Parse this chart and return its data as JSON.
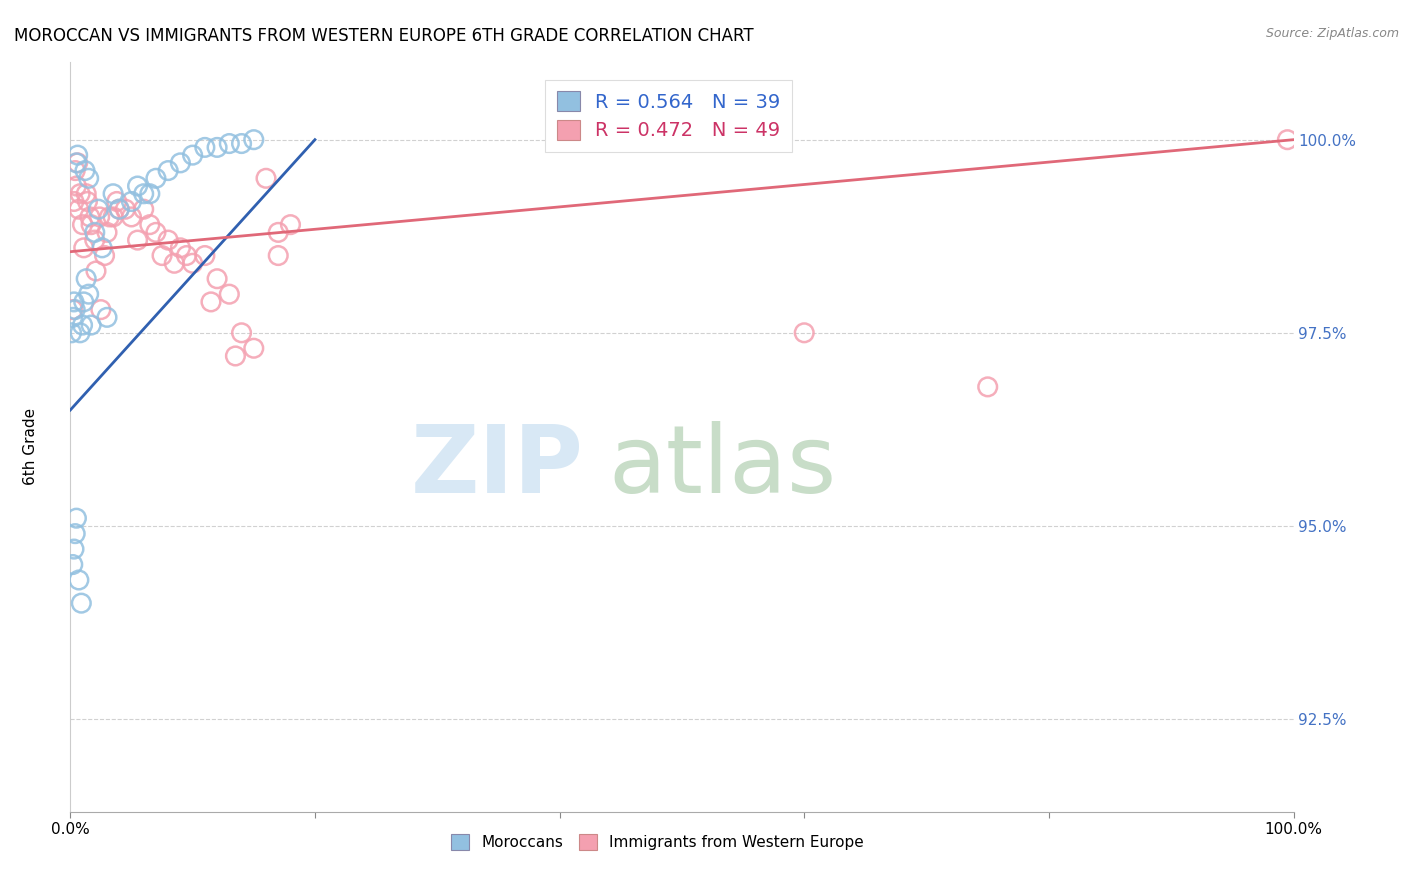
{
  "title": "MOROCCAN VS IMMIGRANTS FROM WESTERN EUROPE 6TH GRADE CORRELATION CHART",
  "source": "Source: ZipAtlas.com",
  "ylabel": "6th Grade",
  "blue_R": 0.564,
  "blue_N": 39,
  "pink_R": 0.472,
  "pink_N": 49,
  "blue_color": "#92c0e0",
  "pink_color": "#f4a0b0",
  "blue_line_color": "#3060b0",
  "pink_line_color": "#e06878",
  "blue_line_x0": 0.0,
  "blue_line_y0": 96.5,
  "blue_line_x1": 20.0,
  "blue_line_y1": 100.0,
  "pink_line_x0": 0.0,
  "pink_line_y0": 98.55,
  "pink_line_x1": 100.0,
  "pink_line_y1": 100.0,
  "xlim": [
    0,
    100
  ],
  "ylim": [
    91.3,
    101.0
  ],
  "yticks": [
    92.5,
    95.0,
    97.5,
    100.0
  ],
  "blue_x": [
    0.2,
    0.3,
    0.4,
    0.5,
    0.7,
    0.9,
    1.1,
    1.3,
    1.5,
    1.7,
    2.0,
    2.3,
    2.6,
    3.0,
    3.5,
    4.0,
    5.0,
    5.5,
    6.0,
    6.5,
    7.0,
    8.0,
    9.0,
    10.0,
    11.0,
    12.0,
    13.0,
    14.0,
    15.0,
    0.1,
    0.2,
    0.3,
    0.4,
    0.5,
    0.6,
    0.8,
    1.0,
    1.2,
    1.5
  ],
  "blue_y": [
    94.5,
    94.7,
    94.9,
    95.1,
    94.3,
    94.0,
    97.9,
    98.2,
    98.0,
    97.6,
    98.8,
    99.1,
    98.6,
    97.7,
    99.3,
    99.1,
    99.2,
    99.4,
    99.3,
    99.3,
    99.5,
    99.6,
    99.7,
    99.8,
    99.9,
    99.9,
    99.95,
    99.95,
    100.0,
    97.5,
    97.7,
    97.9,
    97.8,
    99.7,
    99.8,
    97.5,
    97.6,
    99.6,
    99.5
  ],
  "pink_x": [
    0.3,
    0.5,
    0.7,
    1.0,
    1.3,
    1.6,
    2.0,
    2.4,
    2.8,
    3.2,
    3.8,
    4.5,
    5.0,
    6.0,
    7.0,
    8.0,
    9.0,
    10.0,
    11.0,
    12.0,
    13.0,
    14.0,
    15.0,
    16.0,
    17.0,
    0.2,
    0.4,
    0.6,
    0.8,
    1.1,
    1.4,
    1.7,
    2.1,
    2.5,
    3.0,
    3.5,
    4.0,
    5.5,
    6.5,
    7.5,
    8.5,
    9.5,
    11.5,
    13.5,
    17.0,
    18.0,
    99.5,
    60.0,
    75.0
  ],
  "pink_y": [
    99.2,
    99.4,
    99.1,
    98.9,
    99.3,
    99.0,
    98.7,
    99.0,
    98.5,
    99.0,
    99.2,
    99.1,
    99.0,
    99.1,
    98.8,
    98.7,
    98.6,
    98.4,
    98.5,
    98.2,
    98.0,
    97.5,
    97.3,
    99.5,
    98.8,
    97.8,
    99.6,
    99.7,
    99.3,
    98.6,
    99.2,
    98.9,
    98.3,
    97.8,
    98.8,
    99.0,
    99.1,
    98.7,
    98.9,
    98.5,
    98.4,
    98.5,
    97.9,
    97.2,
    98.5,
    98.9,
    100.0,
    97.5,
    96.8
  ]
}
